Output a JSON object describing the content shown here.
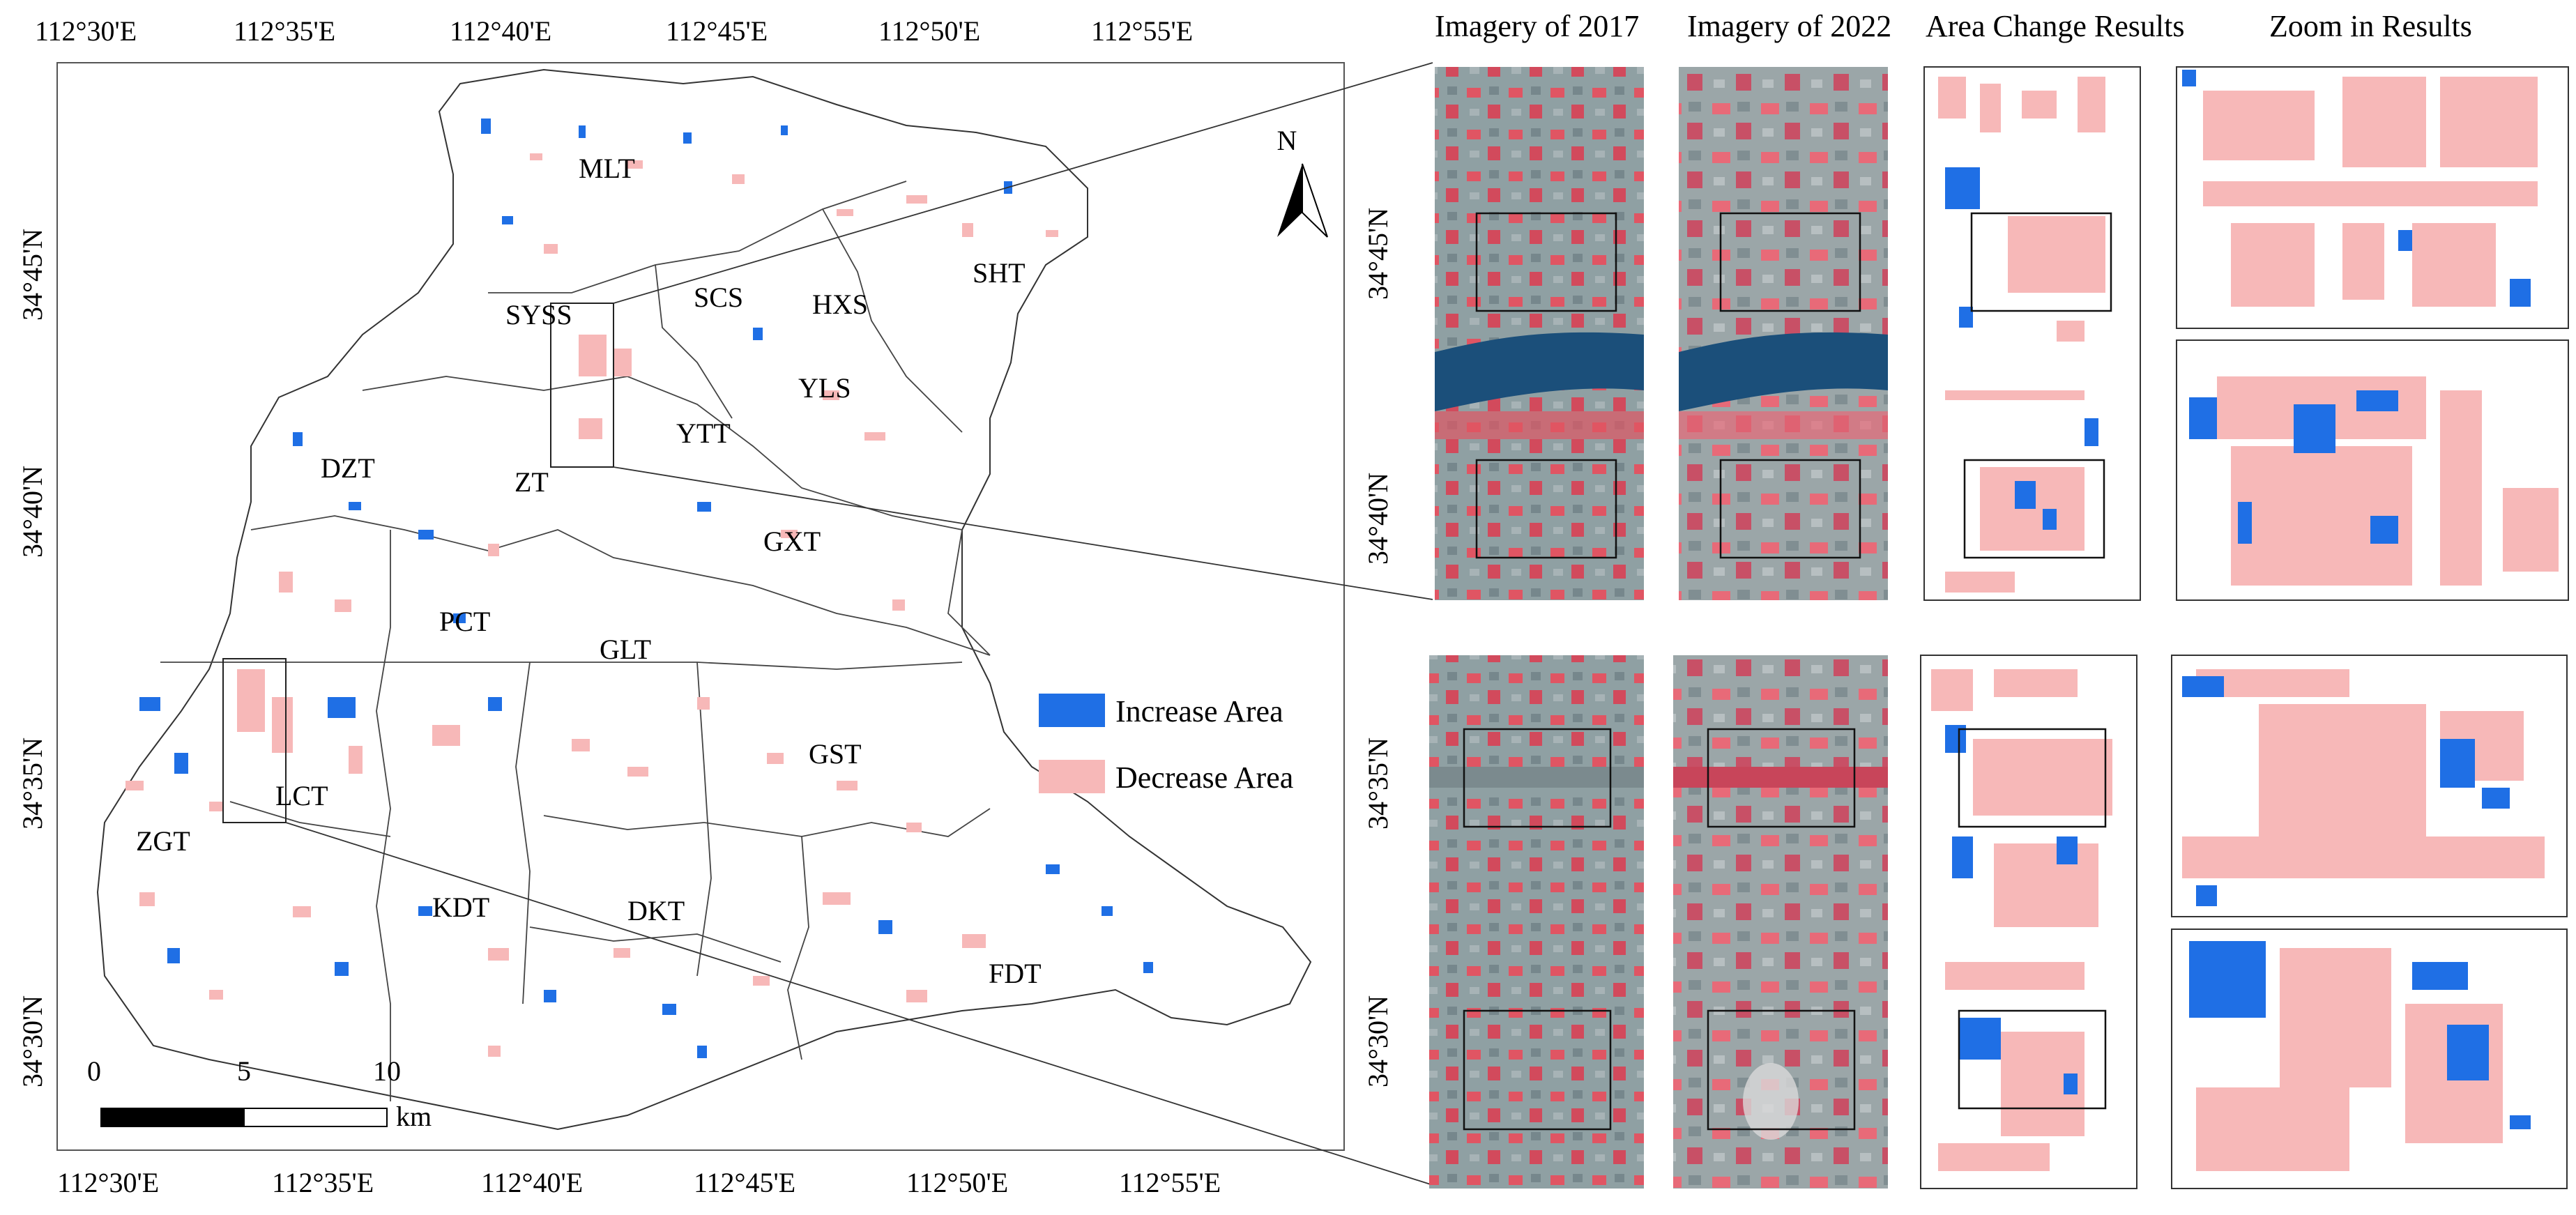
{
  "map": {
    "lon_labels": [
      "112°30'E",
      "112°35'E",
      "112°40'E",
      "112°45'E",
      "112°50'E",
      "112°55'E"
    ],
    "lat_labels": [
      "34°45'N",
      "34°40'N",
      "34°35'N",
      "34°30'N"
    ],
    "regions": [
      "MLT",
      "SYSS",
      "SCS",
      "HXS",
      "SHT",
      "YLS",
      "YTT",
      "ZT",
      "DZT",
      "GXT",
      "PCT",
      "GLT",
      "GST",
      "LCT",
      "ZGT",
      "KDT",
      "DKT",
      "FDT"
    ],
    "legend": {
      "increase_label": "Increase Area",
      "decrease_label": "Decrease Area",
      "increase_color": "#1f6fe5",
      "decrease_color": "#f7b8b8"
    },
    "north_label": "N",
    "scale_bar": {
      "ticks": [
        "0",
        "5",
        "10"
      ],
      "unit": "km"
    }
  },
  "panels": {
    "titles": [
      "Imagery of 2017",
      "Imagery of 2022",
      "Area Change Results",
      "Zoom in Results"
    ],
    "top_lat_labels": [
      "34°45'N",
      "34°40'N"
    ],
    "bottom_lat_labels": [
      "34°35'N",
      "34°30'N"
    ]
  },
  "colors": {
    "blue": "#1f6fe5",
    "pink": "#f7b8b8",
    "imagery_red": "#e05563",
    "imagery_gray": "#8a9aa0",
    "river": "#1b4f7a"
  }
}
